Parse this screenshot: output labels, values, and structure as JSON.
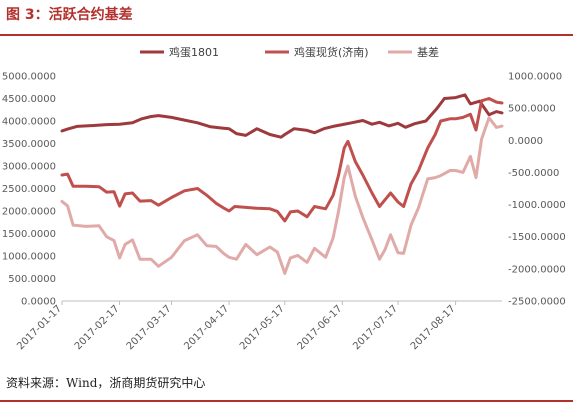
{
  "header": {
    "title": "图 3：活跃合约基差"
  },
  "footer": {
    "source": "资料来源：Wind，浙商期货研究中心"
  },
  "colors": {
    "series1": "#9e3a3d",
    "series2": "#c0504d",
    "series3": "#e0aaa8",
    "accent": "#b3312d"
  },
  "chart_data": {
    "type": "line",
    "title": "",
    "legend_position": "top",
    "grid": false,
    "x_ticks": [
      "2017-01-17",
      "2017-02-17",
      "2017-03-17",
      "2017-04-17",
      "2017-05-17",
      "2017-06-17",
      "2017-07-17",
      "2017-08-17"
    ],
    "x_range": [
      "2017-01-17",
      "2017-09-11"
    ],
    "y_left": {
      "range": [
        0,
        5000
      ],
      "ticks": [
        "0.0000",
        "500.0000",
        "1000.0000",
        "1500.0000",
        "2000.0000",
        "2500.0000",
        "3000.0000",
        "3500.0000",
        "4000.0000",
        "4500.0000",
        "5000.0000"
      ]
    },
    "y_right": {
      "range": [
        -2500,
        1000
      ],
      "ticks": [
        "-2500.0000",
        "-2000.0000",
        "-1500.0000",
        "-1000.0000",
        "-500.0000",
        "0.0000",
        "500.0000",
        "1000.0000"
      ]
    },
    "series": [
      {
        "name": "鸡蛋1801",
        "axis": "left",
        "color": "#9e3a3d",
        "points": [
          [
            "2017-01-17",
            3780
          ],
          [
            "2017-01-20",
            3820
          ],
          [
            "2017-01-25",
            3880
          ],
          [
            "2017-02-03",
            3900
          ],
          [
            "2017-02-10",
            3920
          ],
          [
            "2017-02-17",
            3930
          ],
          [
            "2017-02-24",
            3960
          ],
          [
            "2017-03-01",
            4050
          ],
          [
            "2017-03-06",
            4100
          ],
          [
            "2017-03-10",
            4120
          ],
          [
            "2017-03-17",
            4080
          ],
          [
            "2017-03-24",
            4020
          ],
          [
            "2017-03-31",
            3960
          ],
          [
            "2017-04-07",
            3870
          ],
          [
            "2017-04-14",
            3840
          ],
          [
            "2017-04-17",
            3830
          ],
          [
            "2017-04-21",
            3720
          ],
          [
            "2017-04-26",
            3680
          ],
          [
            "2017-05-02",
            3830
          ],
          [
            "2017-05-09",
            3700
          ],
          [
            "2017-05-15",
            3640
          ],
          [
            "2017-05-17",
            3700
          ],
          [
            "2017-05-22",
            3830
          ],
          [
            "2017-05-29",
            3790
          ],
          [
            "2017-06-02",
            3740
          ],
          [
            "2017-06-07",
            3830
          ],
          [
            "2017-06-12",
            3880
          ],
          [
            "2017-06-17",
            3920
          ],
          [
            "2017-06-22",
            3960
          ],
          [
            "2017-06-28",
            4010
          ],
          [
            "2017-07-03",
            3930
          ],
          [
            "2017-07-07",
            3970
          ],
          [
            "2017-07-12",
            3890
          ],
          [
            "2017-07-17",
            3950
          ],
          [
            "2017-07-21",
            3860
          ],
          [
            "2017-07-26",
            3940
          ],
          [
            "2017-08-01",
            4000
          ],
          [
            "2017-08-07",
            4280
          ],
          [
            "2017-08-11",
            4500
          ],
          [
            "2017-08-17",
            4520
          ],
          [
            "2017-08-22",
            4580
          ],
          [
            "2017-08-25",
            4380
          ],
          [
            "2017-08-30",
            4440
          ],
          [
            "2017-09-04",
            4140
          ],
          [
            "2017-09-08",
            4210
          ],
          [
            "2017-09-11",
            4180
          ]
        ]
      },
      {
        "name": "鸡蛋现货(济南)",
        "axis": "left",
        "color": "#c0504d",
        "points": [
          [
            "2017-01-17",
            2800
          ],
          [
            "2017-01-20",
            2820
          ],
          [
            "2017-01-23",
            2550
          ],
          [
            "2017-01-30",
            2550
          ],
          [
            "2017-02-06",
            2540
          ],
          [
            "2017-02-10",
            2420
          ],
          [
            "2017-02-14",
            2430
          ],
          [
            "2017-02-17",
            2110
          ],
          [
            "2017-02-20",
            2380
          ],
          [
            "2017-02-24",
            2400
          ],
          [
            "2017-02-28",
            2220
          ],
          [
            "2017-03-06",
            2230
          ],
          [
            "2017-03-10",
            2130
          ],
          [
            "2017-03-17",
            2300
          ],
          [
            "2017-03-24",
            2450
          ],
          [
            "2017-03-31",
            2500
          ],
          [
            "2017-04-05",
            2350
          ],
          [
            "2017-04-10",
            2170
          ],
          [
            "2017-04-14",
            2070
          ],
          [
            "2017-04-17",
            2000
          ],
          [
            "2017-04-20",
            2100
          ],
          [
            "2017-04-26",
            2080
          ],
          [
            "2017-05-02",
            2060
          ],
          [
            "2017-05-09",
            2050
          ],
          [
            "2017-05-13",
            1990
          ],
          [
            "2017-05-17",
            1780
          ],
          [
            "2017-05-20",
            1980
          ],
          [
            "2017-05-24",
            2000
          ],
          [
            "2017-05-29",
            1870
          ],
          [
            "2017-06-02",
            2100
          ],
          [
            "2017-06-08",
            2050
          ],
          [
            "2017-06-12",
            2350
          ],
          [
            "2017-06-15",
            2800
          ],
          [
            "2017-06-18",
            3400
          ],
          [
            "2017-06-20",
            3550
          ],
          [
            "2017-06-24",
            3100
          ],
          [
            "2017-06-28",
            2800
          ],
          [
            "2017-07-03",
            2400
          ],
          [
            "2017-07-07",
            2100
          ],
          [
            "2017-07-10",
            2250
          ],
          [
            "2017-07-13",
            2400
          ],
          [
            "2017-07-17",
            2200
          ],
          [
            "2017-07-20",
            2100
          ],
          [
            "2017-07-24",
            2600
          ],
          [
            "2017-07-28",
            2900
          ],
          [
            "2017-08-02",
            3400
          ],
          [
            "2017-08-06",
            3700
          ],
          [
            "2017-08-09",
            4000
          ],
          [
            "2017-08-14",
            4050
          ],
          [
            "2017-08-17",
            4050
          ],
          [
            "2017-08-21",
            4080
          ],
          [
            "2017-08-25",
            4150
          ],
          [
            "2017-08-28",
            3800
          ],
          [
            "2017-08-31",
            4450
          ],
          [
            "2017-09-04",
            4500
          ],
          [
            "2017-09-08",
            4420
          ],
          [
            "2017-09-11",
            4400
          ]
        ]
      },
      {
        "name": "基差",
        "axis": "right",
        "color": "#e0aaa8",
        "points": [
          [
            "2017-01-17",
            -950
          ],
          [
            "2017-01-20",
            -1020
          ],
          [
            "2017-01-23",
            -1320
          ],
          [
            "2017-01-30",
            -1340
          ],
          [
            "2017-02-06",
            -1330
          ],
          [
            "2017-02-10",
            -1500
          ],
          [
            "2017-02-14",
            -1560
          ],
          [
            "2017-02-17",
            -1830
          ],
          [
            "2017-02-20",
            -1620
          ],
          [
            "2017-02-24",
            -1550
          ],
          [
            "2017-02-28",
            -1850
          ],
          [
            "2017-03-06",
            -1850
          ],
          [
            "2017-03-10",
            -1960
          ],
          [
            "2017-03-17",
            -1820
          ],
          [
            "2017-03-24",
            -1560
          ],
          [
            "2017-03-31",
            -1470
          ],
          [
            "2017-04-05",
            -1640
          ],
          [
            "2017-04-10",
            -1650
          ],
          [
            "2017-04-14",
            -1760
          ],
          [
            "2017-04-17",
            -1820
          ],
          [
            "2017-04-21",
            -1850
          ],
          [
            "2017-04-26",
            -1620
          ],
          [
            "2017-05-02",
            -1780
          ],
          [
            "2017-05-09",
            -1660
          ],
          [
            "2017-05-13",
            -1740
          ],
          [
            "2017-05-17",
            -2070
          ],
          [
            "2017-05-20",
            -1830
          ],
          [
            "2017-05-24",
            -1790
          ],
          [
            "2017-05-29",
            -1900
          ],
          [
            "2017-06-02",
            -1680
          ],
          [
            "2017-06-08",
            -1820
          ],
          [
            "2017-06-12",
            -1520
          ],
          [
            "2017-06-15",
            -1100
          ],
          [
            "2017-06-18",
            -580
          ],
          [
            "2017-06-20",
            -400
          ],
          [
            "2017-06-24",
            -870
          ],
          [
            "2017-06-28",
            -1200
          ],
          [
            "2017-07-03",
            -1550
          ],
          [
            "2017-07-07",
            -1850
          ],
          [
            "2017-07-10",
            -1700
          ],
          [
            "2017-07-13",
            -1470
          ],
          [
            "2017-07-17",
            -1750
          ],
          [
            "2017-07-20",
            -1760
          ],
          [
            "2017-07-24",
            -1320
          ],
          [
            "2017-07-28",
            -1050
          ],
          [
            "2017-08-02",
            -600
          ],
          [
            "2017-08-06",
            -580
          ],
          [
            "2017-08-09",
            -550
          ],
          [
            "2017-08-14",
            -470
          ],
          [
            "2017-08-17",
            -470
          ],
          [
            "2017-08-21",
            -500
          ],
          [
            "2017-08-25",
            -250
          ],
          [
            "2017-08-28",
            -580
          ],
          [
            "2017-08-31",
            20
          ],
          [
            "2017-09-04",
            350
          ],
          [
            "2017-09-08",
            200
          ],
          [
            "2017-09-11",
            220
          ]
        ]
      }
    ]
  }
}
